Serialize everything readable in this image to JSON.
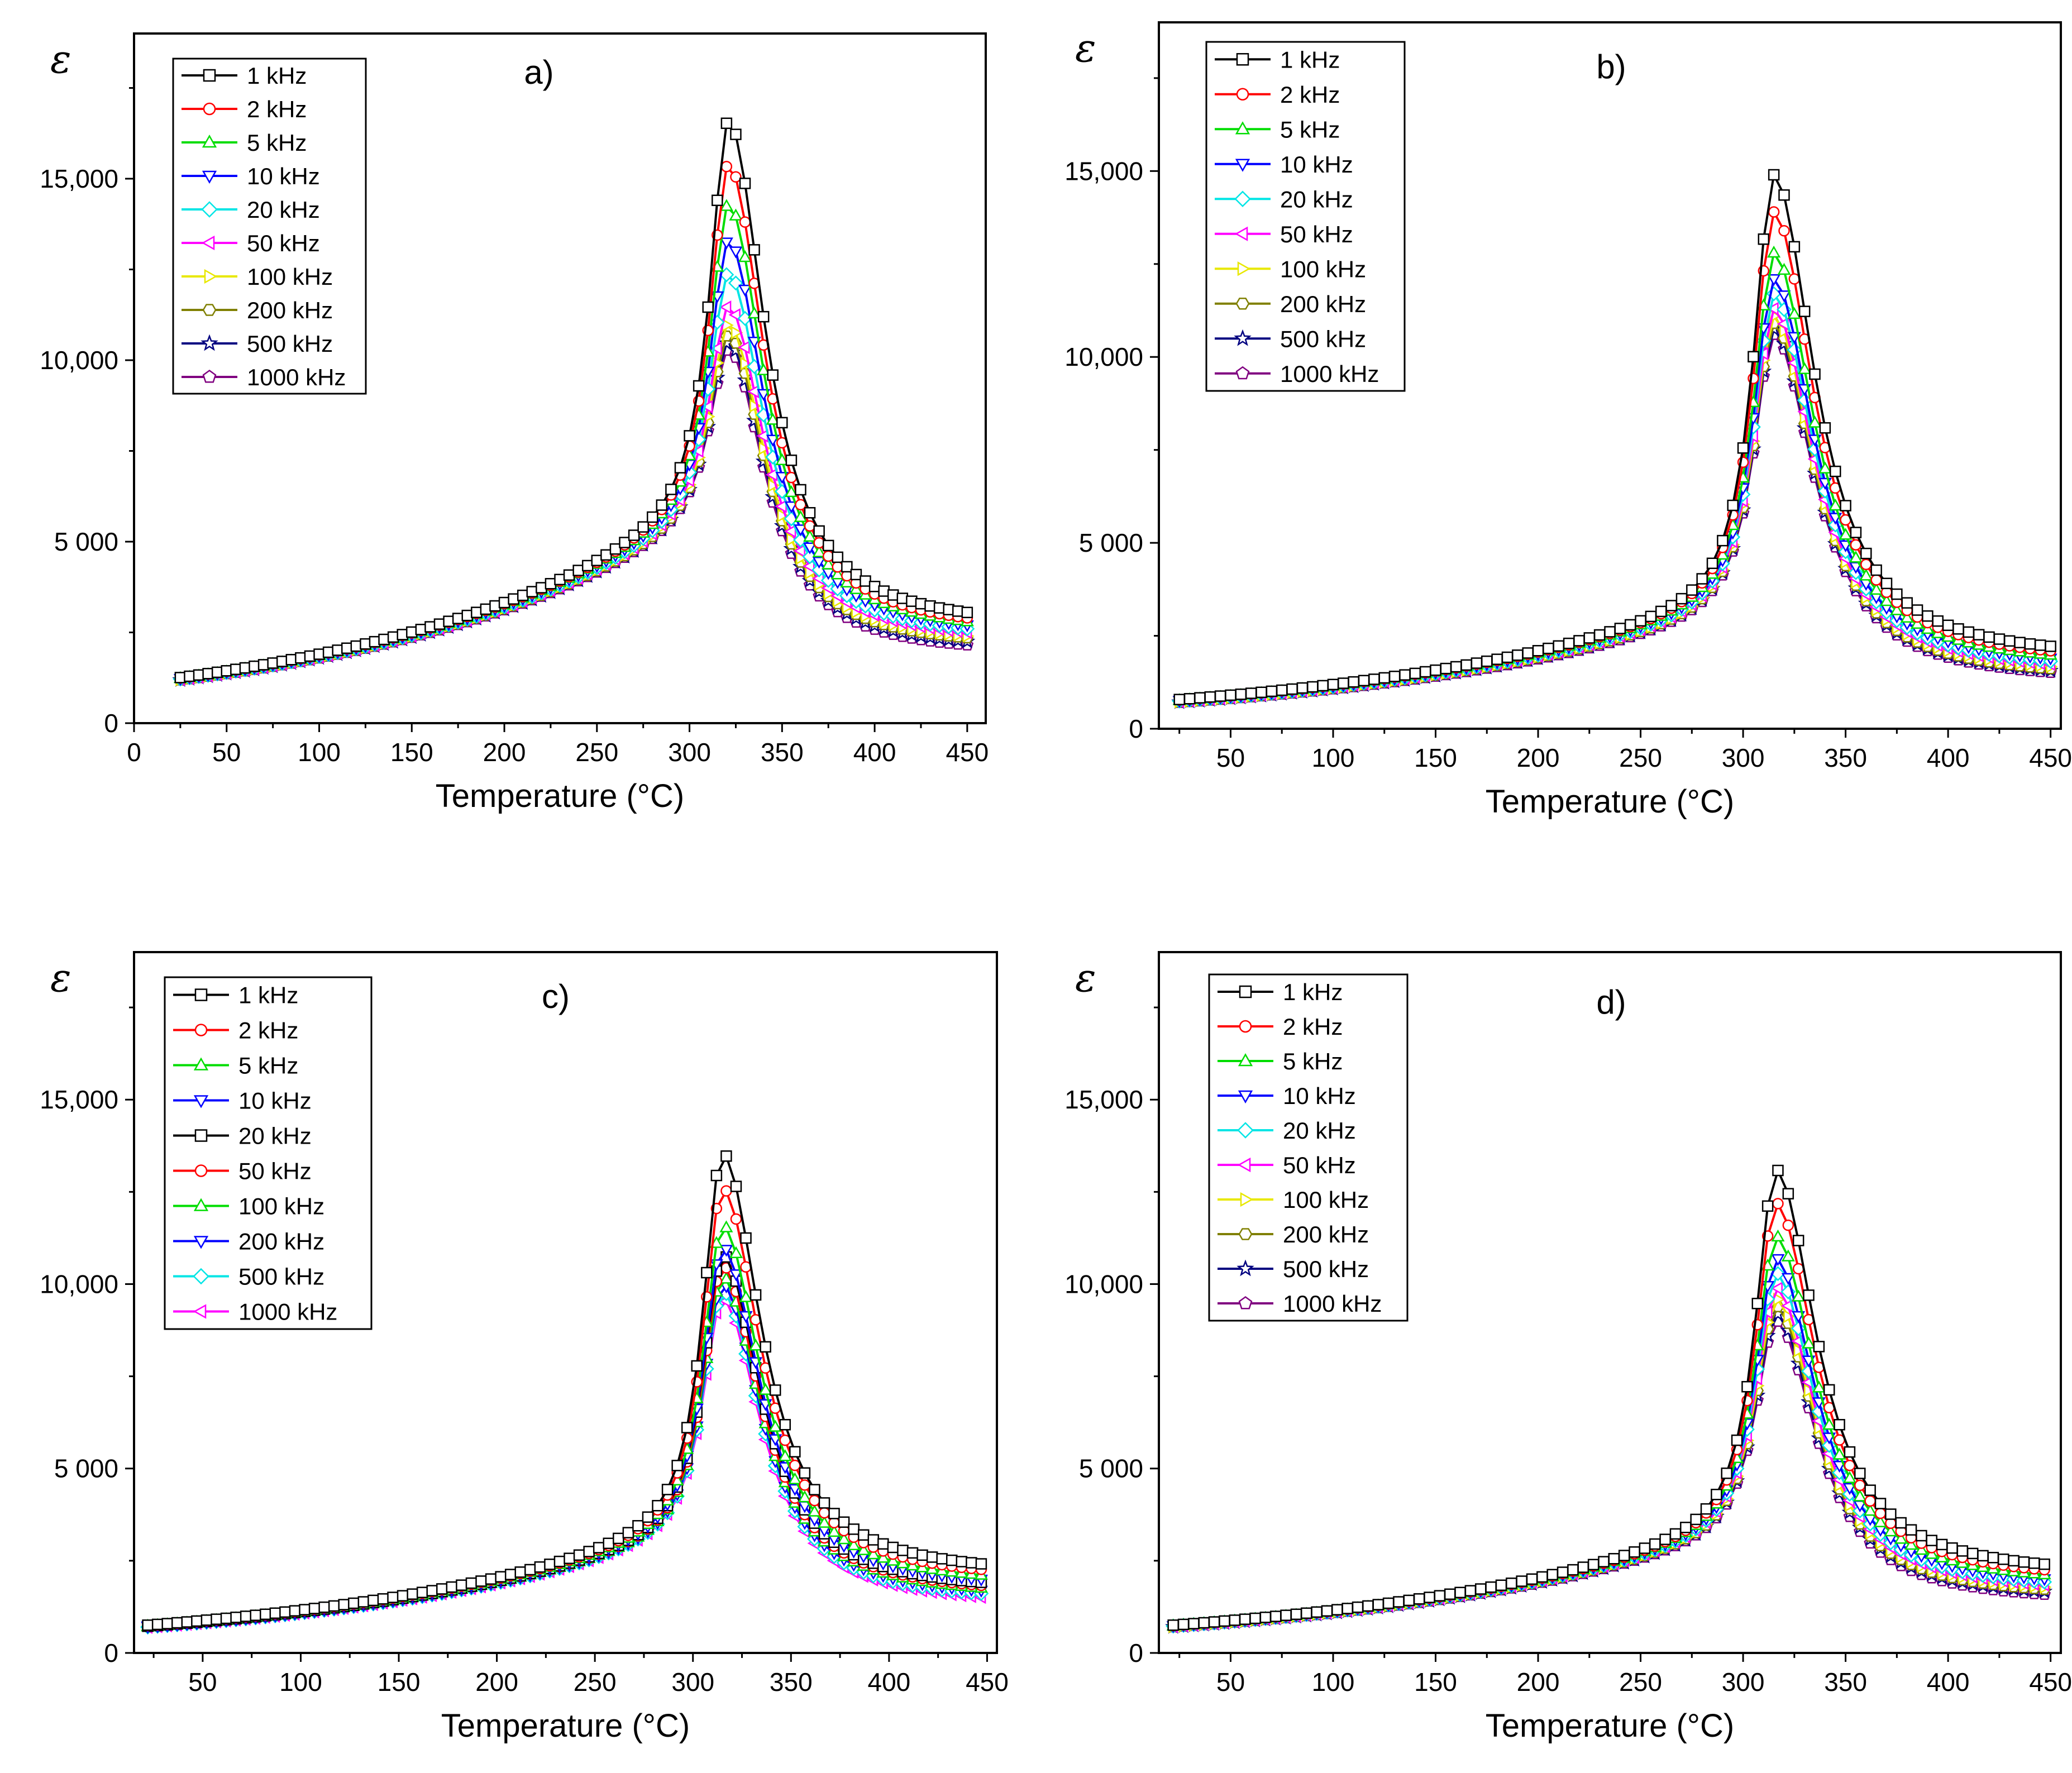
{
  "chart_data": [
    {
      "type": "line",
      "panel_label": "a)",
      "xlabel": "Temperature (°C)",
      "ylabel": "ε",
      "xlim": [
        0,
        460
      ],
      "ylim": [
        0,
        19000
      ],
      "xticks": [
        0,
        50,
        100,
        150,
        200,
        250,
        300,
        350,
        400,
        450
      ],
      "xtick_labels": [
        "0",
        "50",
        "100",
        "150",
        "200",
        "250",
        "300",
        "350",
        "400",
        "450"
      ],
      "yticks": [
        0,
        5000,
        10000,
        15000
      ],
      "ytick_labels": [
        "0",
        "5 000",
        "10,000",
        "15,000"
      ],
      "legend_position": "top-left",
      "x_range": [
        25,
        450
      ],
      "baseline_at_25": [
        1250,
        1240,
        1230,
        1220,
        1210,
        1200,
        1195,
        1190,
        1185,
        1180
      ],
      "peak_temperature": 321,
      "series": [
        {
          "name": "1 kHz",
          "color": "#000000",
          "marker": "square",
          "peak": 16600,
          "end_value": 3050
        },
        {
          "name": "2 kHz",
          "color": "#ff0000",
          "marker": "circle",
          "peak": 15400,
          "end_value": 2900
        },
        {
          "name": "5 kHz",
          "color": "#00dd00",
          "marker": "triangle-up",
          "peak": 14300,
          "end_value": 2800
        },
        {
          "name": "10 kHz",
          "color": "#0000ff",
          "marker": "triangle-down",
          "peak": 13300,
          "end_value": 2700
        },
        {
          "name": "20 kHz",
          "color": "#00e5e5",
          "marker": "diamond",
          "peak": 12400,
          "end_value": 2600
        },
        {
          "name": "50 kHz",
          "color": "#ff00ff",
          "marker": "triangle-left",
          "peak": 11500,
          "end_value": 2500
        },
        {
          "name": "100 kHz",
          "color": "#e8e800",
          "marker": "triangle-right",
          "peak": 11000,
          "end_value": 2400
        },
        {
          "name": "200 kHz",
          "color": "#808000",
          "marker": "hexagon",
          "peak": 10700,
          "end_value": 2350
        },
        {
          "name": "500 kHz",
          "color": "#000080",
          "marker": "star",
          "peak": 10500,
          "end_value": 2250
        },
        {
          "name": "1000 kHz",
          "color": "#800080",
          "marker": "pentagon",
          "peak": 10300,
          "end_value": 2150
        }
      ]
    },
    {
      "type": "line",
      "panel_label": "b)",
      "xlabel": "Temperature (°C)",
      "ylabel": "ε",
      "xlim": [
        15,
        455
      ],
      "ylim": [
        0,
        19000
      ],
      "xticks": [
        50,
        100,
        150,
        200,
        250,
        300,
        350,
        400,
        450
      ],
      "xtick_labels": [
        "50",
        "100",
        "150",
        "200",
        "250",
        "300",
        "350",
        "400",
        "450"
      ],
      "yticks": [
        0,
        5000,
        10000,
        15000
      ],
      "ytick_labels": [
        "0",
        "5 000",
        "10,000",
        "15,000"
      ],
      "legend_position": "top-left",
      "x_range": [
        25,
        453
      ],
      "baseline_at_25": [
        780,
        770,
        760,
        750,
        740,
        730,
        720,
        715,
        710,
        700
      ],
      "peak_temperature": 315,
      "series": [
        {
          "name": "1 kHz",
          "color": "#000000",
          "marker": "square",
          "peak": 14900,
          "end_value": 2200
        },
        {
          "name": "2 kHz",
          "color": "#ff0000",
          "marker": "circle",
          "peak": 13900,
          "end_value": 2080
        },
        {
          "name": "5 kHz",
          "color": "#00dd00",
          "marker": "triangle-up",
          "peak": 12800,
          "end_value": 1970
        },
        {
          "name": "10 kHz",
          "color": "#0000ff",
          "marker": "triangle-down",
          "peak": 12100,
          "end_value": 1880
        },
        {
          "name": "20 kHz",
          "color": "#00e5e5",
          "marker": "diamond",
          "peak": 11700,
          "end_value": 1800
        },
        {
          "name": "50 kHz",
          "color": "#ff00ff",
          "marker": "triangle-left",
          "peak": 11300,
          "end_value": 1720
        },
        {
          "name": "100 kHz",
          "color": "#e8e800",
          "marker": "triangle-right",
          "peak": 11100,
          "end_value": 1660
        },
        {
          "name": "200 kHz",
          "color": "#808000",
          "marker": "hexagon",
          "peak": 10900,
          "end_value": 1600
        },
        {
          "name": "500 kHz",
          "color": "#000080",
          "marker": "star",
          "peak": 10750,
          "end_value": 1550
        },
        {
          "name": "1000 kHz",
          "color": "#800080",
          "marker": "pentagon",
          "peak": 10600,
          "end_value": 1500
        }
      ]
    },
    {
      "type": "line",
      "panel_label": "c)",
      "xlabel": "Temperature (°C)",
      "ylabel": "ε",
      "xlim": [
        15,
        455
      ],
      "ylim": [
        0,
        19000
      ],
      "xticks": [
        50,
        100,
        150,
        200,
        250,
        300,
        350,
        400,
        450
      ],
      "xtick_labels": [
        "50",
        "100",
        "150",
        "200",
        "250",
        "300",
        "350",
        "400",
        "450"
      ],
      "yticks": [
        0,
        5000,
        10000,
        15000
      ],
      "ytick_labels": [
        "0",
        "5 000",
        "10,000",
        "15,000"
      ],
      "legend_position": "top-left",
      "x_range": [
        22,
        450
      ],
      "baseline_at_25": [
        760,
        750,
        740,
        735,
        730,
        725,
        720,
        715,
        710,
        705
      ],
      "peak_temperature": 315,
      "series": [
        {
          "name": "1 kHz",
          "color": "#000000",
          "marker": "square",
          "peak": 13550,
          "end_value": 2400
        },
        {
          "name": "2 kHz",
          "color": "#ff0000",
          "marker": "circle",
          "peak": 12600,
          "end_value": 2250
        },
        {
          "name": "5 kHz",
          "color": "#00dd00",
          "marker": "triangle-up",
          "peak": 11600,
          "end_value": 2100
        },
        {
          "name": "10 kHz",
          "color": "#0000ff",
          "marker": "triangle-down",
          "peak": 11000,
          "end_value": 1980
        },
        {
          "name": "20 kHz",
          "color": "#000000",
          "marker": "square",
          "peak": 10800,
          "end_value": 1900
        },
        {
          "name": "50 kHz",
          "color": "#ff0000",
          "marker": "circle",
          "peak": 10500,
          "end_value": 1820
        },
        {
          "name": "100 kHz",
          "color": "#00dd00",
          "marker": "triangle-up",
          "peak": 10200,
          "end_value": 1750
        },
        {
          "name": "200 kHz",
          "color": "#0000ff",
          "marker": "triangle-down",
          "peak": 10000,
          "end_value": 1680
        },
        {
          "name": "500 kHz",
          "color": "#00e5e5",
          "marker": "diamond",
          "peak": 9800,
          "end_value": 1600
        },
        {
          "name": "1000 kHz",
          "color": "#ff00ff",
          "marker": "triangle-left",
          "peak": 9600,
          "end_value": 1500
        }
      ]
    },
    {
      "type": "line",
      "panel_label": "d)",
      "xlabel": "Temperature (°C)",
      "ylabel": "ε",
      "xlim": [
        15,
        455
      ],
      "ylim": [
        0,
        19000
      ],
      "xticks": [
        50,
        100,
        150,
        200,
        250,
        300,
        350,
        400,
        450
      ],
      "xtick_labels": [
        "50",
        "100",
        "150",
        "200",
        "250",
        "300",
        "350",
        "400",
        "450"
      ],
      "yticks": [
        0,
        5000,
        10000,
        15000
      ],
      "ytick_labels": [
        "0",
        "5 000",
        "10,000",
        "15,000"
      ],
      "legend_position": "top-left",
      "x_range": [
        22,
        448
      ],
      "baseline_at_25": [
        760,
        750,
        745,
        740,
        735,
        730,
        725,
        720,
        715,
        710
      ],
      "peak_temperature": 316,
      "series": [
        {
          "name": "1 kHz",
          "color": "#000000",
          "marker": "square",
          "peak": 13100,
          "end_value": 2400
        },
        {
          "name": "2 kHz",
          "color": "#ff0000",
          "marker": "circle",
          "peak": 12200,
          "end_value": 2250
        },
        {
          "name": "5 kHz",
          "color": "#00dd00",
          "marker": "triangle-up",
          "peak": 11300,
          "end_value": 2120
        },
        {
          "name": "10 kHz",
          "color": "#0000ff",
          "marker": "triangle-down",
          "peak": 10700,
          "end_value": 2000
        },
        {
          "name": "20 kHz",
          "color": "#00e5e5",
          "marker": "diamond",
          "peak": 10300,
          "end_value": 1920
        },
        {
          "name": "50 kHz",
          "color": "#ff00ff",
          "marker": "triangle-left",
          "peak": 9900,
          "end_value": 1840
        },
        {
          "name": "100 kHz",
          "color": "#e8e800",
          "marker": "triangle-right",
          "peak": 9600,
          "end_value": 1780
        },
        {
          "name": "200 kHz",
          "color": "#808000",
          "marker": "hexagon",
          "peak": 9400,
          "end_value": 1720
        },
        {
          "name": "500 kHz",
          "color": "#000080",
          "marker": "star",
          "peak": 9200,
          "end_value": 1660
        },
        {
          "name": "1000 kHz",
          "color": "#800080",
          "marker": "pentagon",
          "peak": 9000,
          "end_value": 1580
        }
      ]
    }
  ]
}
